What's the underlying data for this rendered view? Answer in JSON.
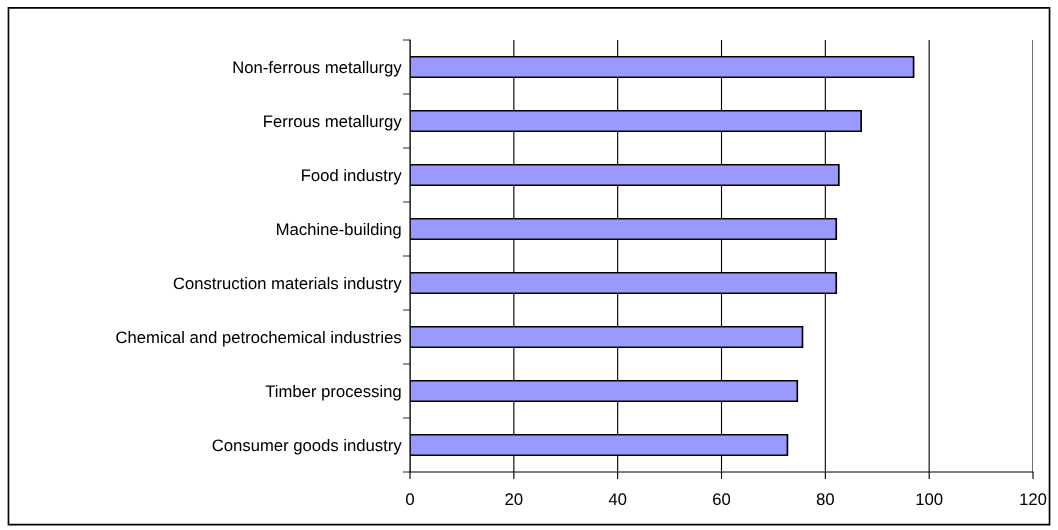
{
  "chart_data": {
    "type": "bar",
    "orientation": "horizontal",
    "categories": [
      "Non-ferrous metallurgy",
      "Ferrous metallurgy",
      "Food industry",
      "Machine-building",
      "Construction materials industry",
      "Chemical and petrochemical industries",
      "Timber processing",
      "Consumer goods industry"
    ],
    "values": [
      97,
      86.9,
      82.6,
      82.1,
      82.1,
      75.6,
      74.6,
      72.7
    ],
    "color": "#9999ff",
    "xlim": [
      0,
      120
    ],
    "xticks": [
      0,
      20,
      40,
      60,
      80,
      100,
      120
    ],
    "grid": "x",
    "legend": false
  }
}
